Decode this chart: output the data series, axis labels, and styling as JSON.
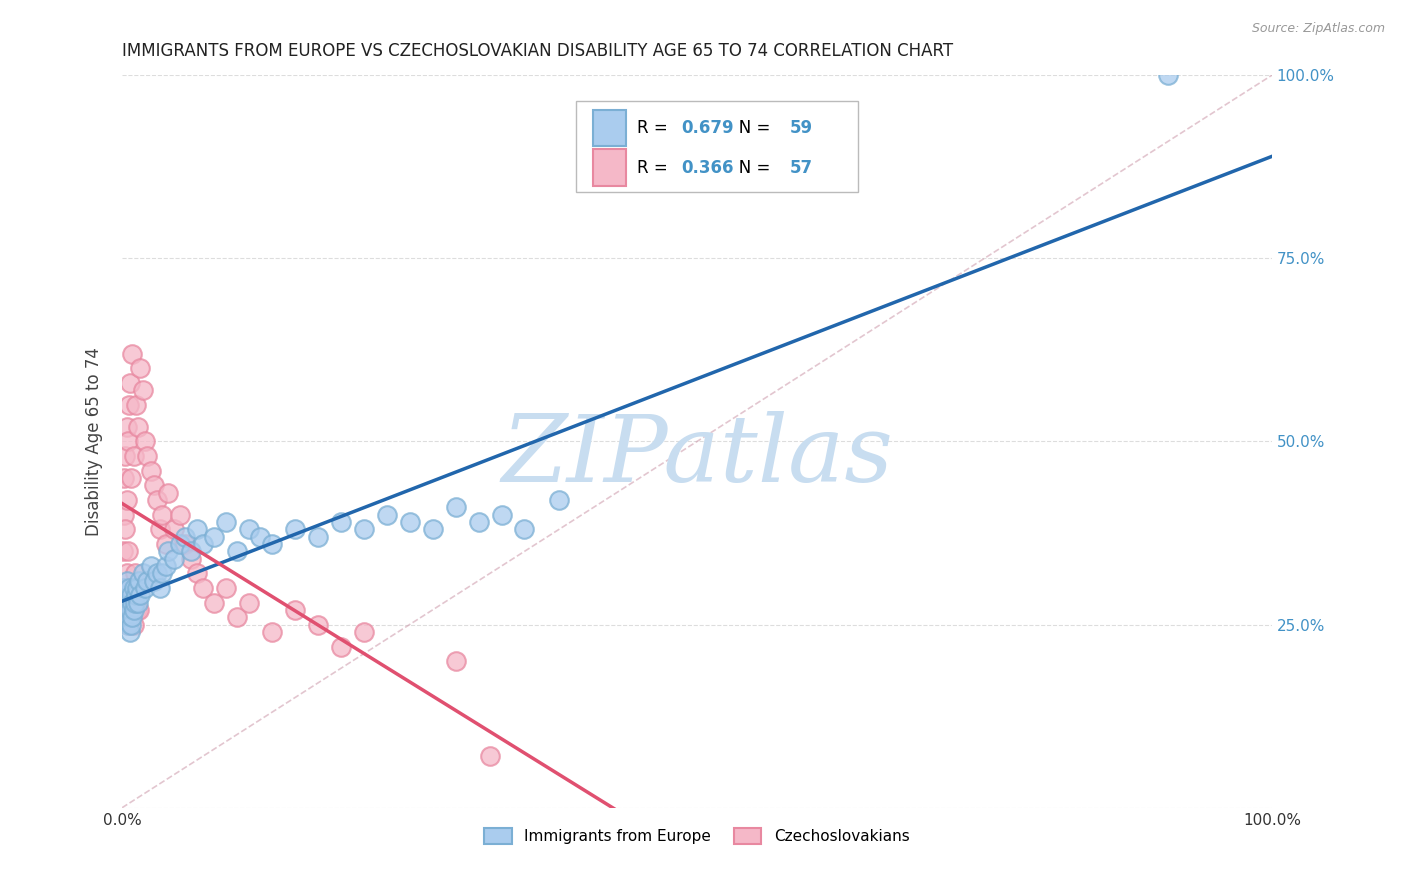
{
  "title": "IMMIGRANTS FROM EUROPE VS CZECHOSLOVAKIAN DISABILITY AGE 65 TO 74 CORRELATION CHART",
  "source": "Source: ZipAtlas.com",
  "ylabel": "Disability Age 65 to 74",
  "legend_label1": "Immigrants from Europe",
  "legend_label2": "Czechoslovakians",
  "R1": 0.679,
  "N1": 59,
  "R2": 0.366,
  "N2": 57,
  "blue_face_color": "#aaccee",
  "blue_edge_color": "#7bafd4",
  "pink_face_color": "#f5b8c8",
  "pink_edge_color": "#e888a0",
  "blue_line_color": "#2166ac",
  "pink_line_color": "#e05070",
  "diag_line_color": "#d0a0b0",
  "watermark_color": "#c8ddf0",
  "background_color": "#ffffff",
  "grid_color": "#dddddd",
  "title_color": "#222222",
  "axis_label_color": "#444444",
  "tick_color_right": "#4292c6",
  "legend_R_color": "#4292c6",
  "legend_N_color": "#4292c6",
  "fig_width": 14.06,
  "fig_height": 8.92,
  "dpi": 100,
  "blue_x": [
    0.001,
    0.002,
    0.003,
    0.003,
    0.004,
    0.004,
    0.005,
    0.005,
    0.006,
    0.006,
    0.007,
    0.007,
    0.008,
    0.008,
    0.009,
    0.009,
    0.01,
    0.01,
    0.011,
    0.012,
    0.013,
    0.014,
    0.015,
    0.016,
    0.018,
    0.02,
    0.022,
    0.025,
    0.028,
    0.03,
    0.033,
    0.035,
    0.038,
    0.04,
    0.045,
    0.05,
    0.055,
    0.06,
    0.065,
    0.07,
    0.08,
    0.09,
    0.1,
    0.11,
    0.12,
    0.13,
    0.15,
    0.17,
    0.19,
    0.21,
    0.23,
    0.25,
    0.27,
    0.29,
    0.31,
    0.33,
    0.35,
    0.38,
    0.91
  ],
  "blue_y": [
    0.28,
    0.3,
    0.26,
    0.29,
    0.27,
    0.31,
    0.25,
    0.28,
    0.26,
    0.3,
    0.24,
    0.27,
    0.25,
    0.29,
    0.28,
    0.26,
    0.27,
    0.3,
    0.28,
    0.29,
    0.3,
    0.28,
    0.31,
    0.29,
    0.32,
    0.3,
    0.31,
    0.33,
    0.31,
    0.32,
    0.3,
    0.32,
    0.33,
    0.35,
    0.34,
    0.36,
    0.37,
    0.35,
    0.38,
    0.36,
    0.37,
    0.39,
    0.35,
    0.38,
    0.37,
    0.36,
    0.38,
    0.37,
    0.39,
    0.38,
    0.4,
    0.39,
    0.38,
    0.41,
    0.39,
    0.4,
    0.38,
    0.42,
    1.0
  ],
  "pink_x": [
    0.001,
    0.001,
    0.002,
    0.002,
    0.002,
    0.003,
    0.003,
    0.003,
    0.004,
    0.004,
    0.004,
    0.005,
    0.005,
    0.005,
    0.006,
    0.006,
    0.007,
    0.007,
    0.008,
    0.008,
    0.009,
    0.009,
    0.01,
    0.01,
    0.011,
    0.012,
    0.013,
    0.014,
    0.015,
    0.016,
    0.018,
    0.02,
    0.022,
    0.025,
    0.028,
    0.03,
    0.033,
    0.035,
    0.038,
    0.04,
    0.045,
    0.05,
    0.055,
    0.06,
    0.065,
    0.07,
    0.08,
    0.09,
    0.1,
    0.11,
    0.13,
    0.15,
    0.17,
    0.19,
    0.21,
    0.29,
    0.32
  ],
  "pink_y": [
    0.3,
    0.35,
    0.28,
    0.4,
    0.45,
    0.3,
    0.38,
    0.48,
    0.32,
    0.42,
    0.52,
    0.25,
    0.35,
    0.5,
    0.28,
    0.55,
    0.3,
    0.58,
    0.28,
    0.45,
    0.3,
    0.62,
    0.25,
    0.48,
    0.32,
    0.55,
    0.27,
    0.52,
    0.27,
    0.6,
    0.57,
    0.5,
    0.48,
    0.46,
    0.44,
    0.42,
    0.38,
    0.4,
    0.36,
    0.43,
    0.38,
    0.4,
    0.36,
    0.34,
    0.32,
    0.3,
    0.28,
    0.3,
    0.26,
    0.28,
    0.24,
    0.27,
    0.25,
    0.22,
    0.24,
    0.2,
    0.07
  ],
  "watermark_text": "ZIPatlas"
}
